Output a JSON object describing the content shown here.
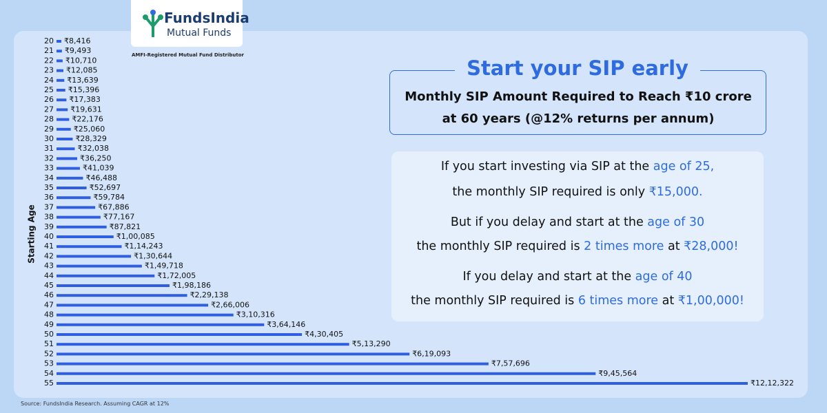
{
  "header": {
    "brand": "FundsIndia",
    "sub_brand": "Mutual Funds",
    "tagline": "AMFI-Registered Mutual Fund Distributor"
  },
  "chart_data": {
    "type": "hbar",
    "y_label": "Starting Age",
    "categories": [
      "20",
      "21",
      "22",
      "23",
      "24",
      "25",
      "26",
      "27",
      "28",
      "29",
      "30",
      "31",
      "32",
      "33",
      "34",
      "35",
      "36",
      "37",
      "38",
      "39",
      "40",
      "41",
      "42",
      "43",
      "44",
      "45",
      "46",
      "47",
      "48",
      "49",
      "50",
      "51",
      "52",
      "53",
      "54",
      "55"
    ],
    "values": [
      8416,
      9493,
      10710,
      12085,
      13639,
      15396,
      17383,
      19631,
      22176,
      25060,
      28329,
      32038,
      36250,
      41039,
      46488,
      52697,
      59784,
      67886,
      77167,
      87821,
      100085,
      114243,
      130644,
      149718,
      172005,
      198186,
      229138,
      266006,
      310316,
      364146,
      430405,
      513290,
      619093,
      757696,
      945564,
      1212322
    ],
    "value_labels": [
      "₹8,416",
      "₹9,493",
      "₹10,710",
      "₹12,085",
      "₹13,639",
      "₹15,396",
      "₹17,383",
      "₹19,631",
      "₹22,176",
      "₹25,060",
      "₹28,329",
      "₹32,038",
      "₹36,250",
      "₹41,039",
      "₹46,488",
      "₹52,697",
      "₹59,784",
      "₹67,886",
      "₹77,167",
      "₹87,821",
      "₹1,00,085",
      "₹1,14,243",
      "₹1,30,644",
      "₹1,49,718",
      "₹1,72,005",
      "₹1,98,186",
      "₹2,29,138",
      "₹2,66,006",
      "₹3,10,316",
      "₹3,64,146",
      "₹4,30,405",
      "₹5,13,290",
      "₹6,19,093",
      "₹7,57,696",
      "₹9,45,564",
      "₹12,12,322"
    ],
    "color": "#2f5fe0",
    "highlight_indices": [
      5,
      10,
      15,
      20
    ],
    "highlight_color": "#2e6bde"
  },
  "panel": {
    "title": "Start your SIP early",
    "subtitle_lines": [
      "Monthly SIP Amount Required to Reach ₹10 crore",
      "at 60 years (@12% returns per annum)"
    ]
  },
  "info": {
    "lines": [
      [
        {
          "text": "If you start investing via SIP at the ",
          "highlight": false
        },
        {
          "text": "age of 25,",
          "highlight": true
        }
      ],
      [
        {
          "text": "the monthly SIP required is only ",
          "highlight": false
        },
        {
          "text": "₹15,000.",
          "highlight": true
        }
      ],
      [
        {
          "text": "But if you delay and start at the ",
          "highlight": false
        },
        {
          "text": "age of 30",
          "highlight": true
        }
      ],
      [
        {
          "text": "the monthly SIP required is ",
          "highlight": false
        },
        {
          "text": "2 times more",
          "highlight": true
        },
        {
          "text": " at ",
          "highlight": false
        },
        {
          "text": "₹28,000!",
          "highlight": true
        }
      ],
      [
        {
          "text": "If you delay and start at the ",
          "highlight": false
        },
        {
          "text": "age of 40",
          "highlight": true
        }
      ],
      [
        {
          "text": "the monthly SIP required is ",
          "highlight": false
        },
        {
          "text": "6 times more",
          "highlight": true
        },
        {
          "text": " at ",
          "highlight": false
        },
        {
          "text": "₹1,00,000!",
          "highlight": true
        }
      ]
    ]
  },
  "footer": {
    "source": "Source: FundsIndia Research. Assuming CAGR at 12%"
  }
}
